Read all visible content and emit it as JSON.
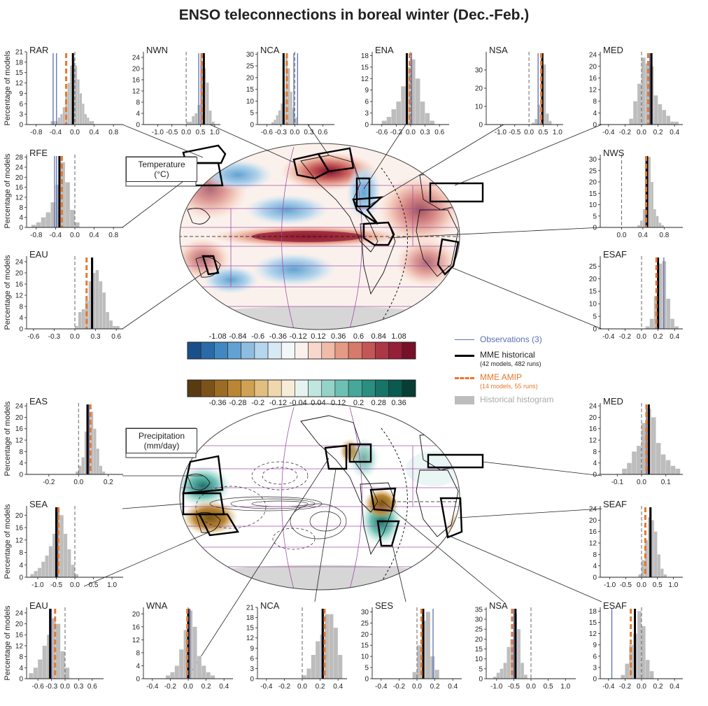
{
  "title": "ENSO teleconnections in boreal winter (Dec.-Feb.)",
  "ylabel": "Percentage of models",
  "map_labels": {
    "temperature": [
      "Temperature",
      "(°C)"
    ],
    "precipitation": [
      "Precipitation",
      "(mm/day)"
    ]
  },
  "legend": {
    "observations": "Observations (3)",
    "mme_hist": "MME historical",
    "mme_hist_sub": "(42 models, 482 runs)",
    "mme_amip": "MME AMIP",
    "mme_amip_sub": "(14 models, 55 runs)",
    "histogram": "Historical histogram"
  },
  "colors": {
    "obs": "#5b6fb5",
    "hist": "#000000",
    "amip": "#e8772a",
    "bars": "#bdbdbd",
    "map_outline": "#a050a8",
    "land": "#d6d6d6"
  },
  "colorbars": {
    "temperature": {
      "ticks": [
        "-1.08",
        "-0.84",
        "-0.6",
        "-0.36",
        "-0.12",
        "0.12",
        "0.36",
        "0.6",
        "0.84",
        "1.08"
      ],
      "colors": [
        "#1b4f8a",
        "#2b6aa8",
        "#4188c2",
        "#62a2d2",
        "#8ebde0",
        "#b5d6ec",
        "#d7e9f4",
        "#f2f7fa",
        "#fbf1ec",
        "#f8d8cb",
        "#f0bba8",
        "#e59a86",
        "#d67a6b",
        "#c45656",
        "#ad3845",
        "#951f36",
        "#78102a"
      ]
    },
    "precipitation": {
      "ticks": [
        "-0.36",
        "-0.28",
        "-0.2",
        "-0.12",
        "-0.04",
        "0.04",
        "0.12",
        "0.2",
        "0.28",
        "0.36"
      ],
      "colors": [
        "#5a3a10",
        "#7b5319",
        "#9b6c23",
        "#b98634",
        "#cfa153",
        "#e2bf80",
        "#efd8ad",
        "#f7ecd8",
        "#e5f4f1",
        "#c0e6df",
        "#95d3c9",
        "#6ec0b4",
        "#46a89b",
        "#2a8e81",
        "#177468",
        "#0b5a4f",
        "#063e36"
      ]
    }
  },
  "chart_data": [
    {
      "type": "bar",
      "id": "RAR",
      "title": "RAR",
      "ylim": [
        0,
        21
      ],
      "yticks": [
        0,
        3,
        6,
        9,
        12,
        15,
        18,
        21
      ],
      "xlim": [
        -1.0,
        1.0
      ],
      "xticks": [
        -0.8,
        -0.4,
        0.0,
        0.4,
        0.8
      ],
      "xticklabels": [
        "-0.8",
        "-0.4",
        "0.0",
        "0.4",
        "0.8"
      ],
      "bins": [
        -0.5,
        -0.45,
        -0.4,
        -0.35,
        -0.3,
        -0.25,
        -0.2,
        -0.15,
        -0.1,
        -0.05,
        0.0,
        0.05,
        0.1,
        0.15,
        0.2,
        0.25,
        0.3,
        0.35
      ],
      "values": [
        1,
        1,
        1,
        2,
        3,
        5,
        9,
        12,
        17,
        19,
        17,
        13,
        9,
        6,
        3,
        2,
        1,
        1
      ],
      "obs": [
        -0.45,
        -0.38
      ],
      "hist": -0.04,
      "amip": -0.18
    },
    {
      "type": "bar",
      "id": "NWN",
      "title": "NWN",
      "ylim": [
        0,
        26
      ],
      "yticks": [
        0,
        4,
        8,
        12,
        16,
        20,
        24
      ],
      "xlim": [
        -1.5,
        1.2
      ],
      "xticks": [
        -1.0,
        -0.5,
        0.0,
        0.5,
        1.0
      ],
      "xticklabels": [
        "-1.0",
        "-0.5",
        "0.0",
        "0.5",
        "1.0"
      ],
      "bins": [
        0.0,
        0.1,
        0.2,
        0.3,
        0.4,
        0.5,
        0.6,
        0.7,
        0.8,
        0.9
      ],
      "values": [
        1,
        1,
        3,
        4,
        7,
        21,
        20,
        15,
        5,
        1
      ],
      "obs": [
        0.44,
        0.52
      ],
      "hist": 0.62,
      "amip": 0.55
    },
    {
      "type": "bar",
      "id": "NCA",
      "title": "NCA",
      "ylim": [
        0,
        31
      ],
      "yticks": [
        0,
        5,
        10,
        15,
        20,
        25,
        30
      ],
      "xlim": [
        -0.8,
        0.85
      ],
      "xticks": [
        -0.6,
        -0.3,
        0.0,
        0.3,
        0.6
      ],
      "xticklabels": [
        "-0.6",
        "-0.3",
        "0.0",
        "0.3",
        "0.6"
      ],
      "bins": [
        -0.5,
        -0.45,
        -0.4,
        -0.35,
        -0.3,
        -0.25,
        -0.2,
        -0.15,
        -0.1,
        -0.05,
        0.0
      ],
      "values": [
        1,
        2,
        4,
        6,
        9,
        14,
        29,
        24,
        14,
        7,
        3
      ],
      "obs": [
        -0.02,
        0.06
      ],
      "hist": -0.24,
      "amip": -0.17
    },
    {
      "type": "bar",
      "id": "ENA",
      "title": "ENA",
      "ylim": [
        0,
        19
      ],
      "yticks": [
        0,
        3,
        6,
        9,
        12,
        15,
        18
      ],
      "xlim": [
        -0.8,
        0.8
      ],
      "xticks": [
        -0.6,
        -0.3,
        0.0,
        0.3,
        0.6
      ],
      "xticklabels": [
        "-0.6",
        "-0.3",
        "0.0",
        "0.3",
        "0.6"
      ],
      "bins": [
        -0.6,
        -0.5,
        -0.4,
        -0.3,
        -0.2,
        -0.1,
        0.0,
        0.1,
        0.2,
        0.3,
        0.4
      ],
      "values": [
        1,
        2,
        4,
        6,
        10,
        15,
        17,
        12,
        6,
        3,
        1
      ],
      "obs": [
        0.02
      ],
      "hist": -0.08,
      "amip": -0.02
    },
    {
      "type": "bar",
      "id": "NSA",
      "title": "NSA",
      "ylim": [
        0,
        40
      ],
      "yticks": [
        0,
        10,
        20,
        30
      ],
      "xlim": [
        -1.5,
        1.2
      ],
      "xticks": [
        -1.0,
        -0.5,
        0.0,
        0.5,
        1.0
      ],
      "xticklabels": [
        "-1.0",
        "-0.5",
        "0.0",
        "0.5",
        "1.0"
      ],
      "bins": [
        0.1,
        0.2,
        0.3,
        0.4,
        0.5,
        0.6,
        0.7
      ],
      "values": [
        1,
        3,
        11,
        36,
        33,
        6,
        2
      ],
      "obs": [
        0.32
      ],
      "hist": 0.47,
      "amip": 0.43
    },
    {
      "type": "bar",
      "id": "MED_T",
      "title": "MED",
      "ylim": [
        0,
        25
      ],
      "yticks": [
        0,
        4,
        8,
        12,
        16,
        20,
        24
      ],
      "xlim": [
        -0.5,
        0.5
      ],
      "xticks": [
        -0.4,
        -0.2,
        0.0,
        0.2,
        0.4
      ],
      "xticklabels": [
        "-0.4",
        "-0.2",
        "0.0",
        "0.2",
        "0.4"
      ],
      "bins": [
        -0.15,
        -0.1,
        -0.05,
        0.0,
        0.05,
        0.1,
        0.15,
        0.2,
        0.25,
        0.3,
        0.35,
        0.4
      ],
      "values": [
        2,
        8,
        14,
        23,
        21,
        20,
        10,
        7,
        5,
        3,
        1,
        1
      ],
      "obs": [
        0.1
      ],
      "hist": 0.12,
      "amip": 0.08
    },
    {
      "type": "bar",
      "id": "RFE",
      "title": "RFE",
      "ylim": [
        0,
        29
      ],
      "yticks": [
        0,
        4,
        8,
        12,
        16,
        20,
        24,
        28
      ],
      "xlim": [
        -1.0,
        1.0
      ],
      "xticks": [
        -0.8,
        -0.4,
        0.0,
        0.4,
        0.8
      ],
      "xticklabels": [
        "-0.8",
        "-0.4",
        "0.0",
        "0.4",
        "0.8"
      ],
      "bins": [
        -0.9,
        -0.8,
        -0.7,
        -0.6,
        -0.5,
        -0.4,
        -0.3,
        -0.2,
        -0.1,
        0.0
      ],
      "values": [
        1,
        2,
        4,
        6,
        10,
        17,
        26,
        18,
        7,
        2
      ],
      "obs": [
        -0.42,
        -0.38
      ],
      "hist": -0.32,
      "amip": -0.27
    },
    {
      "type": "bar",
      "id": "NWS",
      "title": "NWS",
      "ylim": [
        0,
        32
      ],
      "yticks": [
        0,
        5,
        10,
        15,
        20,
        25,
        30
      ],
      "xlim": [
        -0.4,
        1.15
      ],
      "xticks": [
        0.0,
        0.4,
        0.8
      ],
      "xticklabels": [
        "0.0",
        "0.4",
        "0.8"
      ],
      "bins": [
        0.3,
        0.35,
        0.4,
        0.45,
        0.5,
        0.55,
        0.6,
        0.65,
        0.7,
        0.75
      ],
      "values": [
        1,
        3,
        8,
        27,
        31,
        20,
        8,
        5,
        2,
        1
      ],
      "obs": [
        0.45
      ],
      "hist": 0.48,
      "amip": 0.46
    },
    {
      "type": "bar",
      "id": "EAU_T",
      "title": "EAU",
      "ylim": [
        0,
        26
      ],
      "yticks": [
        0,
        4,
        8,
        12,
        16,
        20,
        24
      ],
      "xlim": [
        -0.7,
        0.7
      ],
      "xticks": [
        -0.6,
        -0.3,
        0.0,
        0.3,
        0.6
      ],
      "xticklabels": [
        "-0.6",
        "-0.3",
        "0.0",
        "0.3",
        "0.6"
      ],
      "bins": [
        0.0,
        0.05,
        0.1,
        0.15,
        0.2,
        0.25,
        0.3,
        0.35,
        0.4,
        0.45,
        0.5,
        0.55,
        0.6
      ],
      "values": [
        1,
        6,
        7,
        10,
        17,
        20,
        21,
        17,
        13,
        6,
        3,
        1,
        1
      ],
      "obs": [
        0.24
      ],
      "hist": 0.25,
      "amip": 0.17
    },
    {
      "type": "bar",
      "id": "ESAF_T",
      "title": "ESAF",
      "ylim": [
        0,
        29
      ],
      "yticks": [
        0,
        5,
        10,
        15,
        20,
        25
      ],
      "xlim": [
        -0.5,
        0.5
      ],
      "xticks": [
        -0.4,
        -0.2,
        0.0,
        0.2,
        0.4
      ],
      "xticklabels": [
        "-0.4",
        "-0.2",
        "0.0",
        "0.2",
        "0.4"
      ],
      "bins": [
        0.05,
        0.1,
        0.15,
        0.2,
        0.25,
        0.3,
        0.35,
        0.4
      ],
      "values": [
        1,
        4,
        13,
        26,
        27,
        12,
        4,
        1
      ],
      "obs": [
        0.27
      ],
      "hist": 0.2,
      "amip": 0.18
    },
    {
      "type": "bar",
      "id": "EAS",
      "title": "EAS",
      "ylim": [
        0,
        25
      ],
      "yticks": [
        0,
        4,
        8,
        12,
        16,
        20,
        24
      ],
      "xlim": [
        -0.35,
        0.3
      ],
      "xticks": [
        -0.2,
        0.0,
        0.2
      ],
      "xticklabels": [
        "-0.2",
        "0.0",
        "0.2"
      ],
      "bins": [
        -0.02,
        0.0,
        0.02,
        0.04,
        0.06,
        0.08,
        0.1,
        0.12,
        0.14,
        0.16
      ],
      "values": [
        1,
        3,
        6,
        15,
        20,
        22,
        16,
        9,
        3,
        1
      ],
      "obs": [
        0.07
      ],
      "hist": 0.06,
      "amip": 0.08
    },
    {
      "type": "bar",
      "id": "MED_P",
      "title": "MED",
      "ylim": [
        0,
        25
      ],
      "yticks": [
        0,
        4,
        8,
        12,
        16,
        20,
        24
      ],
      "xlim": [
        -0.17,
        0.17
      ],
      "xticks": [
        -0.1,
        0.0,
        0.1
      ],
      "xticklabels": [
        "-0.1",
        "0.0",
        "0.1"
      ],
      "bins": [
        -0.08,
        -0.06,
        -0.04,
        -0.02,
        0.0,
        0.02,
        0.04,
        0.06,
        0.08,
        0.1,
        0.12,
        0.14
      ],
      "values": [
        2,
        4,
        8,
        10,
        18,
        23,
        20,
        11,
        7,
        5,
        3,
        2
      ],
      "obs": [
        0.02
      ],
      "hist": 0.03,
      "amip": 0.02
    },
    {
      "type": "bar",
      "id": "SEA",
      "title": "SEA",
      "ylim": [
        0,
        23
      ],
      "yticks": [
        0,
        4,
        8,
        12,
        16,
        20
      ],
      "xlim": [
        -1.3,
        1.3
      ],
      "xticks": [
        -1.0,
        -0.5,
        0.0,
        0.5,
        1.0
      ],
      "xticklabels": [
        "-1.0",
        "-0.5",
        "0.0",
        "0.5",
        "1.0"
      ],
      "bins": [
        -1.2,
        -1.1,
        -1.0,
        -0.9,
        -0.8,
        -0.7,
        -0.6,
        -0.5,
        -0.4,
        -0.3,
        -0.2,
        -0.1,
        0.0
      ],
      "values": [
        1,
        2,
        3,
        5,
        7,
        10,
        14,
        21,
        20,
        14,
        9,
        4,
        1
      ],
      "obs": [
        -0.46
      ],
      "hist": -0.5,
      "amip": -0.44
    },
    {
      "type": "bar",
      "id": "SEAF",
      "title": "SEAF",
      "ylim": [
        0,
        25
      ],
      "yticks": [
        0,
        4,
        8,
        12,
        16,
        20,
        24
      ],
      "xlim": [
        -1.3,
        1.3
      ],
      "xticks": [
        -1.0,
        -0.5,
        0.0,
        0.5,
        1.0
      ],
      "xticklabels": [
        "-1.0",
        "-0.5",
        "0.0",
        "0.5",
        "1.0"
      ],
      "bins": [
        -0.1,
        0.0,
        0.1,
        0.2,
        0.3,
        0.4,
        0.5,
        0.6,
        0.7
      ],
      "values": [
        1,
        6,
        13,
        21,
        20,
        16,
        8,
        3,
        1
      ],
      "obs": [
        0.3
      ],
      "hist": 0.28,
      "amip": 0.12
    },
    {
      "type": "bar",
      "id": "EAU_P",
      "title": "EAU",
      "ylim": [
        0,
        26
      ],
      "yticks": [
        0,
        4,
        8,
        12,
        16,
        20,
        24
      ],
      "xlim": [
        -0.85,
        0.85
      ],
      "xticks": [
        -0.6,
        -0.3,
        0.0,
        0.3,
        0.6
      ],
      "xticklabels": [
        "-0.6",
        "-0.3",
        "0.0",
        "0.3",
        "0.6"
      ],
      "bins": [
        -0.8,
        -0.7,
        -0.6,
        -0.5,
        -0.4,
        -0.3,
        -0.2,
        -0.1,
        0.0
      ],
      "values": [
        2,
        4,
        7,
        12,
        16,
        22,
        20,
        10,
        4
      ],
      "obs": [
        -0.3
      ],
      "hist": -0.33,
      "amip": -0.22
    },
    {
      "type": "bar",
      "id": "WNA",
      "title": "WNA",
      "ylim": [
        0,
        22
      ],
      "yticks": [
        0,
        4,
        8,
        12,
        16,
        20
      ],
      "xlim": [
        -0.5,
        0.5
      ],
      "xticks": [
        -0.4,
        -0.2,
        0.0,
        0.2,
        0.4
      ],
      "xticklabels": [
        "-0.4",
        "-0.2",
        "0.0",
        "0.2",
        "0.4"
      ],
      "bins": [
        -0.25,
        -0.2,
        -0.15,
        -0.1,
        -0.05,
        0.0,
        0.05,
        0.1,
        0.15,
        0.2,
        0.25
      ],
      "values": [
        1,
        2,
        4,
        9,
        15,
        21,
        16,
        7,
        4,
        2,
        1
      ],
      "obs": [
        0.02
      ],
      "hist": 0.0,
      "amip": -0.01
    },
    {
      "type": "bar",
      "id": "NCA_P",
      "title": "NCA",
      "ylim": [
        0,
        21
      ],
      "yticks": [
        0,
        3,
        6,
        9,
        12,
        15,
        18,
        21
      ],
      "xlim": [
        -0.5,
        0.5
      ],
      "xticks": [
        -0.4,
        -0.2,
        0.0,
        0.2,
        0.4
      ],
      "xticklabels": [
        "-0.4",
        "-0.2",
        "0.0",
        "0.2",
        "0.4"
      ],
      "bins": [
        0.0,
        0.05,
        0.1,
        0.15,
        0.2,
        0.25,
        0.3,
        0.35,
        0.4
      ],
      "values": [
        1,
        3,
        7,
        11,
        13,
        19,
        19,
        15,
        7
      ],
      "obs": [
        0.22
      ],
      "hist": 0.23,
      "amip": 0.25
    },
    {
      "type": "bar",
      "id": "SES",
      "title": "SES",
      "ylim": [
        0,
        32
      ],
      "yticks": [
        0,
        5,
        10,
        15,
        20,
        25,
        30
      ],
      "xlim": [
        -0.5,
        0.5
      ],
      "xticks": [
        -0.4,
        -0.2,
        0.0,
        0.2,
        0.4
      ],
      "xticklabels": [
        "-0.4",
        "-0.2",
        "0.0",
        "0.2",
        "0.4"
      ],
      "bins": [
        -0.05,
        0.0,
        0.05,
        0.1,
        0.15,
        0.2
      ],
      "values": [
        3,
        15,
        26,
        30,
        10,
        4
      ],
      "obs": [
        0.18
      ],
      "hist": 0.07,
      "amip": 0.05
    },
    {
      "type": "bar",
      "id": "NSA_P",
      "title": "NSA",
      "ylim": [
        0,
        36
      ],
      "yticks": [
        0,
        5,
        10,
        15,
        20,
        25,
        30,
        35
      ],
      "xlim": [
        -1.3,
        1.3
      ],
      "xticks": [
        -1.0,
        -0.5,
        0.0,
        0.5,
        1.0
      ],
      "xticklabels": [
        "-1.0",
        "-0.5",
        "0.0",
        "0.5",
        "1.0"
      ],
      "bins": [
        -1.1,
        -1.0,
        -0.9,
        -0.8,
        -0.7,
        -0.6,
        -0.5,
        -0.4,
        -0.3,
        -0.2
      ],
      "values": [
        1,
        3,
        5,
        8,
        16,
        20,
        33,
        25,
        8,
        2
      ],
      "obs": [
        -0.5
      ],
      "hist": -0.45,
      "amip": -0.55
    },
    {
      "type": "bar",
      "id": "ESAF_P",
      "title": "ESAF",
      "ylim": [
        0,
        19
      ],
      "yticks": [
        0,
        3,
        6,
        9,
        12,
        15,
        18
      ],
      "xlim": [
        -0.5,
        0.5
      ],
      "xticks": [
        -0.4,
        -0.2,
        0.0,
        0.2,
        0.4
      ],
      "xticklabels": [
        "-0.4",
        "-0.2",
        "0.0",
        "0.2",
        "0.4"
      ],
      "bins": [
        -0.25,
        -0.2,
        -0.15,
        -0.1,
        -0.05,
        0.0,
        0.05,
        0.1
      ],
      "values": [
        1,
        4,
        9,
        12,
        18,
        14,
        5,
        2
      ],
      "obs": [
        -0.36
      ],
      "hist": -0.08,
      "amip": -0.13
    }
  ]
}
